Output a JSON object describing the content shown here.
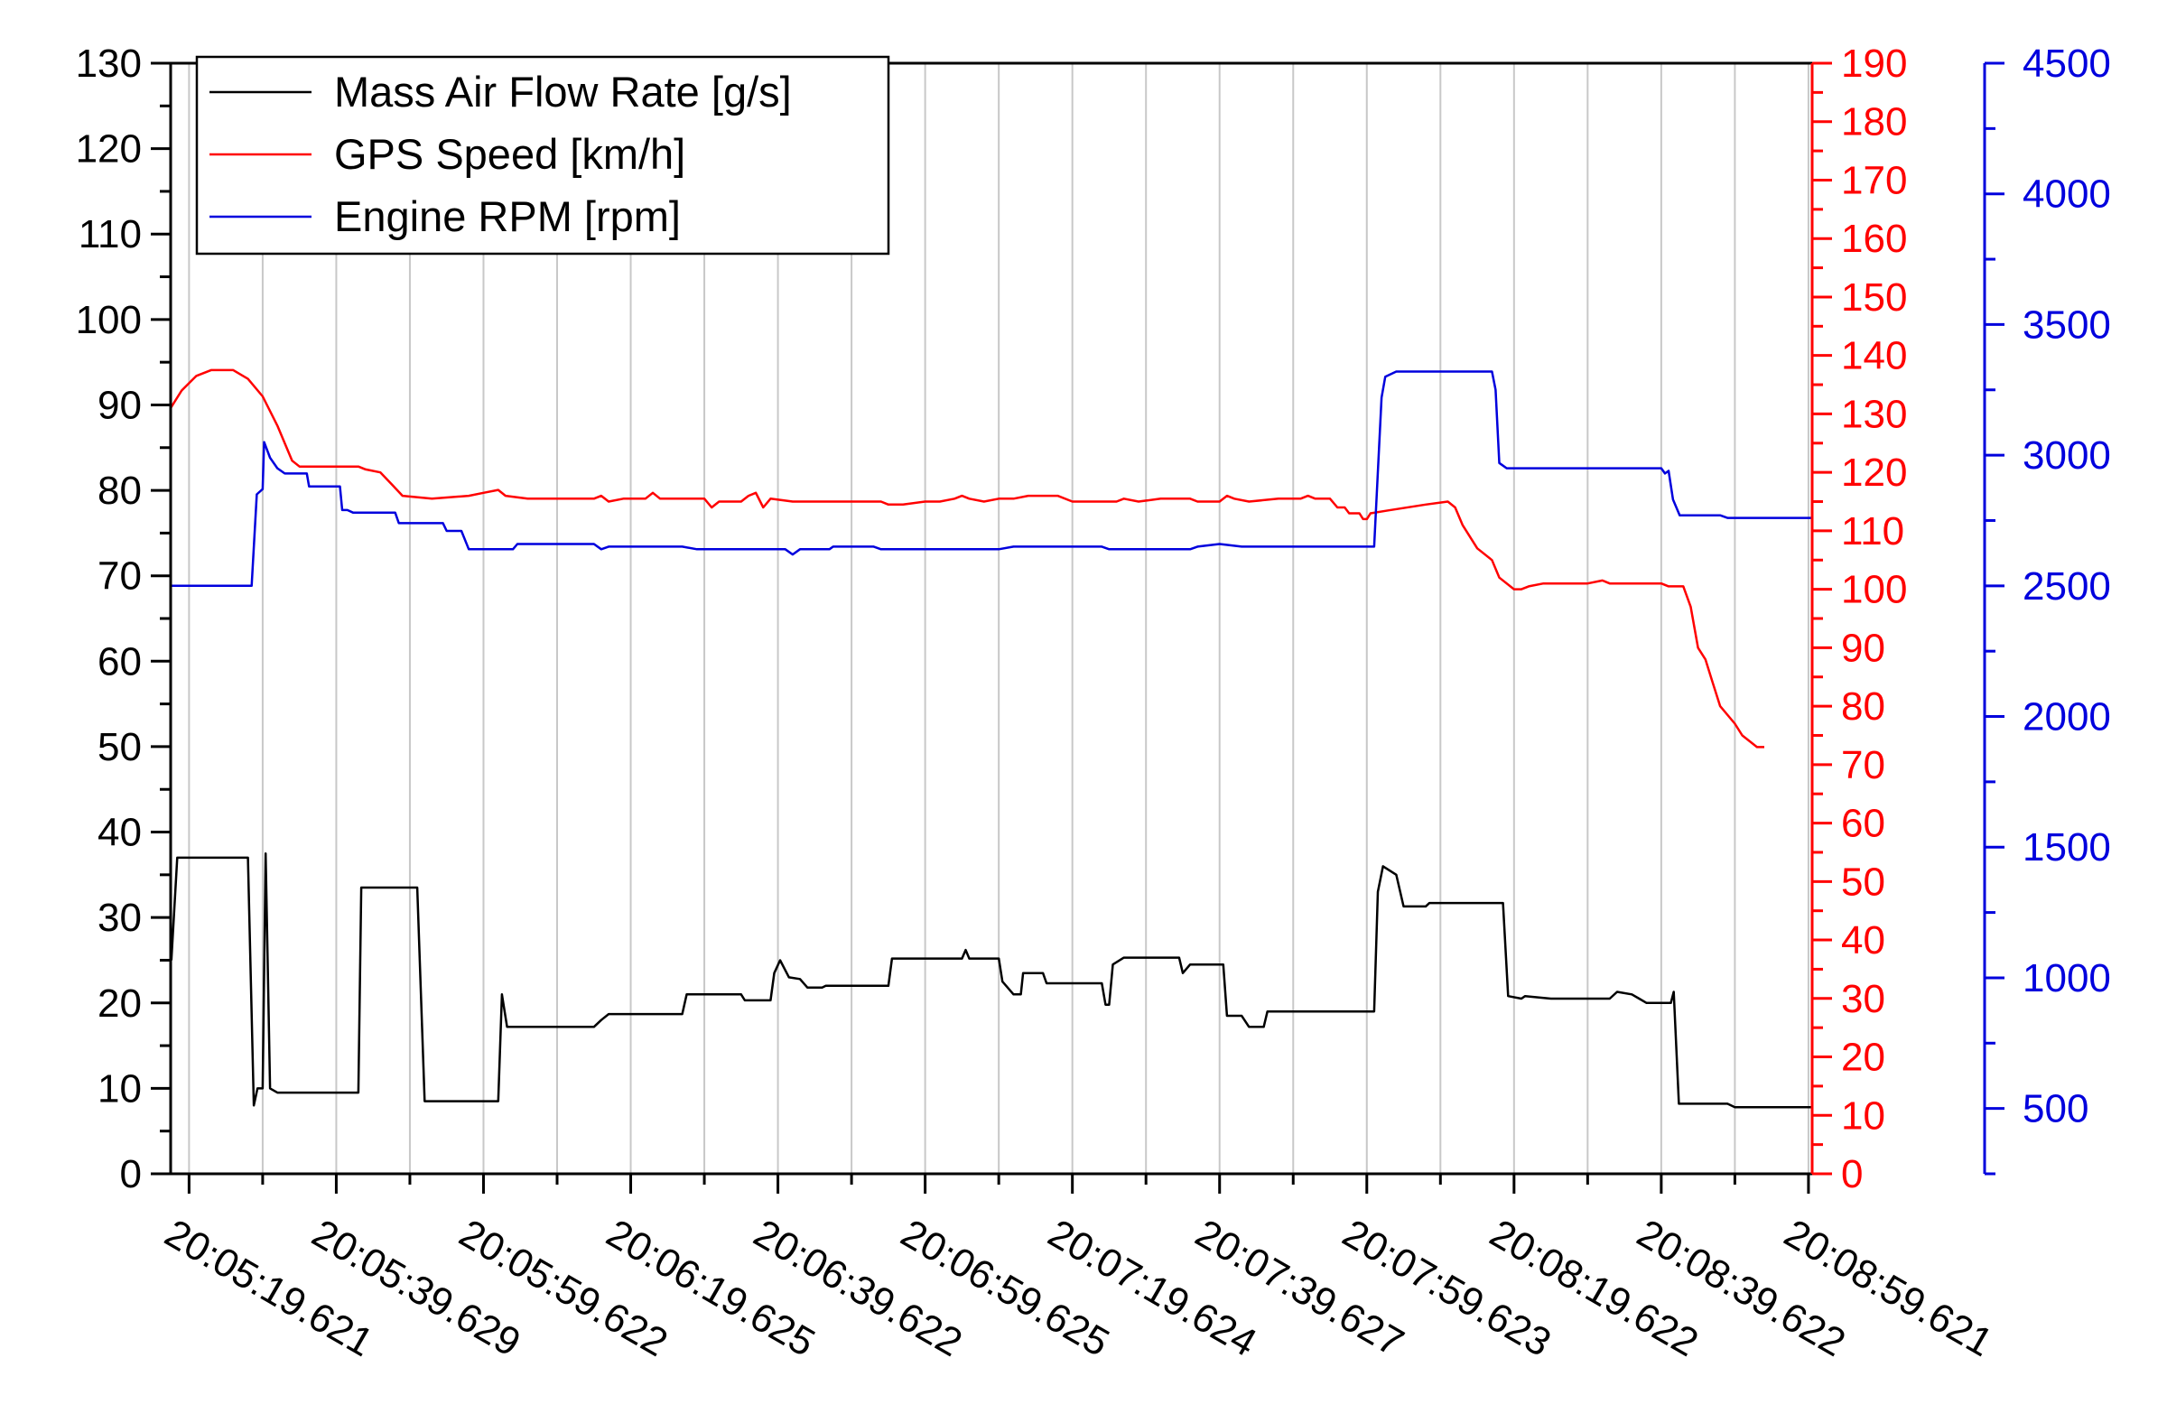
{
  "chart_data": {
    "type": "line",
    "x_ticks": [
      "20:05:19.621",
      "20:05:39.629",
      "20:05:59.622",
      "20:06:19.625",
      "20:06:39.622",
      "20:06:59.625",
      "20:07:19.624",
      "20:07:39.627",
      "20:07:59.623",
      "20:08:19.622",
      "20:08:39.622",
      "20:08:59.621"
    ],
    "x_range_seconds": [
      -2.5,
      220.5
    ],
    "grid": "vertical",
    "legend_position": "top-left",
    "axes": {
      "left": {
        "ticks": [
          0,
          10,
          20,
          30,
          40,
          50,
          60,
          70,
          80,
          90,
          100,
          110,
          120,
          130
        ],
        "range": [
          0,
          130
        ],
        "color": "#000000"
      },
      "right1": {
        "ticks": [
          0,
          10,
          20,
          30,
          40,
          50,
          60,
          70,
          80,
          90,
          100,
          110,
          120,
          130,
          140,
          150,
          160,
          170,
          180,
          190
        ],
        "range": [
          0,
          190
        ],
        "color": "#ff0000"
      },
      "right2": {
        "ticks": [
          500,
          1000,
          1500,
          2000,
          2500,
          3000,
          3500,
          4000,
          4500
        ],
        "range": [
          250,
          4500
        ],
        "color": "#0000dd"
      }
    },
    "series": [
      {
        "name": "Mass Air Flow Rate [g/s]",
        "color": "#000000",
        "axis": "left",
        "points": [
          [
            -2.4,
            25
          ],
          [
            -1.6,
            37
          ],
          [
            8,
            37
          ],
          [
            8.8,
            8
          ],
          [
            9.3,
            10
          ],
          [
            10,
            10
          ],
          [
            10.4,
            37.5
          ],
          [
            11,
            10
          ],
          [
            12,
            9.5
          ],
          [
            23,
            9.5
          ],
          [
            23.4,
            33.5
          ],
          [
            31,
            33.5
          ],
          [
            32,
            8.5
          ],
          [
            42,
            8.5
          ],
          [
            42.5,
            21
          ],
          [
            43.2,
            17.2
          ],
          [
            55,
            17.2
          ],
          [
            56,
            18
          ],
          [
            57,
            18.7
          ],
          [
            67,
            18.7
          ],
          [
            67.6,
            21
          ],
          [
            75,
            21
          ],
          [
            75.5,
            20.3
          ],
          [
            79,
            20.3
          ],
          [
            79.5,
            23.5
          ],
          [
            80.3,
            25
          ],
          [
            81.5,
            23
          ],
          [
            83,
            22.8
          ],
          [
            84,
            21.8
          ],
          [
            86,
            21.8
          ],
          [
            86.5,
            22
          ],
          [
            95,
            22
          ],
          [
            95.5,
            25.2
          ],
          [
            105,
            25.2
          ],
          [
            105.5,
            26.2
          ],
          [
            106,
            25.2
          ],
          [
            110,
            25.2
          ],
          [
            110.5,
            22.5
          ],
          [
            112,
            21
          ],
          [
            113,
            21
          ],
          [
            113.3,
            23.5
          ],
          [
            116,
            23.5
          ],
          [
            116.5,
            22.3
          ],
          [
            124,
            22.3
          ],
          [
            124.5,
            19.8
          ],
          [
            125,
            19.8
          ],
          [
            125.5,
            24.5
          ],
          [
            127,
            25.3
          ],
          [
            134.5,
            25.3
          ],
          [
            135,
            23.5
          ],
          [
            136,
            24.5
          ],
          [
            140.5,
            24.5
          ],
          [
            141,
            18.5
          ],
          [
            143,
            18.5
          ],
          [
            144,
            17.2
          ],
          [
            146,
            17.2
          ],
          [
            146.5,
            19
          ],
          [
            161,
            19
          ],
          [
            161.5,
            33
          ],
          [
            162.2,
            36
          ],
          [
            164,
            35
          ],
          [
            165,
            31.3
          ],
          [
            168,
            31.3
          ],
          [
            168.5,
            31.7
          ],
          [
            178.5,
            31.7
          ],
          [
            179.2,
            20.8
          ],
          [
            181,
            20.5
          ],
          [
            181.5,
            20.8
          ],
          [
            185,
            20.5
          ],
          [
            193,
            20.5
          ],
          [
            194,
            21.3
          ],
          [
            196,
            21
          ],
          [
            197,
            20.5
          ],
          [
            198,
            20
          ],
          [
            201.3,
            20
          ],
          [
            201.7,
            21.3
          ],
          [
            202.4,
            8.2
          ],
          [
            209,
            8.2
          ],
          [
            210,
            7.8
          ],
          [
            220.5,
            7.8
          ]
        ]
      },
      {
        "name": "GPS Speed [km/h]",
        "color": "#ff0000",
        "axis": "right1",
        "points": [
          [
            -2.5,
            131
          ],
          [
            -1,
            134
          ],
          [
            1,
            136.5
          ],
          [
            3,
            137.5
          ],
          [
            6,
            137.5
          ],
          [
            8,
            136
          ],
          [
            10,
            133
          ],
          [
            12,
            128
          ],
          [
            14,
            122
          ],
          [
            15,
            121
          ],
          [
            23,
            121
          ],
          [
            24,
            120.5
          ],
          [
            26,
            120
          ],
          [
            27.5,
            118
          ],
          [
            29,
            116
          ],
          [
            33,
            115.5
          ],
          [
            38,
            116
          ],
          [
            40,
            116.5
          ],
          [
            42,
            117
          ],
          [
            43,
            116
          ],
          [
            46,
            115.5
          ],
          [
            50,
            115.5
          ],
          [
            55,
            115.5
          ],
          [
            56,
            116
          ],
          [
            57,
            115
          ],
          [
            59,
            115.5
          ],
          [
            62,
            115.5
          ],
          [
            63,
            116.5
          ],
          [
            64,
            115.5
          ],
          [
            66,
            115.5
          ],
          [
            70,
            115.5
          ],
          [
            71,
            114
          ],
          [
            72,
            115
          ],
          [
            75,
            115
          ],
          [
            76,
            116
          ],
          [
            77,
            116.5
          ],
          [
            78,
            114
          ],
          [
            79,
            115.5
          ],
          [
            82,
            115
          ],
          [
            90,
            115
          ],
          [
            92,
            115
          ],
          [
            94,
            115
          ],
          [
            95,
            114.5
          ],
          [
            97,
            114.5
          ],
          [
            100,
            115
          ],
          [
            101,
            115
          ],
          [
            102,
            115
          ],
          [
            104,
            115.5
          ],
          [
            105,
            116
          ],
          [
            106,
            115.5
          ],
          [
            108,
            115
          ],
          [
            110,
            115.5
          ],
          [
            112,
            115.5
          ],
          [
            114,
            116
          ],
          [
            118,
            116
          ],
          [
            120,
            115
          ],
          [
            126,
            115
          ],
          [
            127,
            115.5
          ],
          [
            129,
            115
          ],
          [
            132,
            115.5
          ],
          [
            136,
            115.5
          ],
          [
            137,
            115
          ],
          [
            140,
            115
          ],
          [
            141,
            116
          ],
          [
            142,
            115.5
          ],
          [
            144,
            115
          ],
          [
            148,
            115.5
          ],
          [
            151,
            115.5
          ],
          [
            152,
            116
          ],
          [
            153,
            115.5
          ],
          [
            155,
            115.5
          ],
          [
            156,
            114
          ],
          [
            157,
            114
          ],
          [
            157.6,
            113
          ],
          [
            159,
            113
          ],
          [
            159.5,
            112
          ],
          [
            160,
            112
          ],
          [
            160.5,
            113
          ],
          [
            163,
            113.5
          ],
          [
            168,
            114.5
          ],
          [
            171,
            115
          ],
          [
            172,
            114
          ],
          [
            173,
            111
          ],
          [
            175,
            107
          ],
          [
            177,
            105
          ],
          [
            178,
            102
          ],
          [
            180,
            100
          ],
          [
            181,
            100
          ],
          [
            182,
            100.5
          ],
          [
            184,
            101
          ],
          [
            190,
            101
          ],
          [
            192,
            101.5
          ],
          [
            193,
            101
          ],
          [
            198,
            101
          ],
          [
            200,
            101
          ],
          [
            201,
            100.5
          ],
          [
            203,
            100.5
          ],
          [
            204,
            97
          ],
          [
            205,
            90
          ],
          [
            206,
            88
          ],
          [
            207,
            84
          ],
          [
            208,
            80
          ],
          [
            210,
            77
          ],
          [
            211,
            75
          ],
          [
            212,
            74
          ],
          [
            213,
            73
          ],
          [
            214,
            73
          ]
        ]
      },
      {
        "name": "Engine RPM [rpm]",
        "color": "#0000dd",
        "axis": "right2",
        "points": [
          [
            -2.5,
            2500
          ],
          [
            8.5,
            2500
          ],
          [
            9.2,
            2850
          ],
          [
            10,
            2870
          ],
          [
            10.2,
            3050
          ],
          [
            11,
            2990
          ],
          [
            12,
            2950
          ],
          [
            13,
            2930
          ],
          [
            16,
            2930
          ],
          [
            16.3,
            2880
          ],
          [
            20.5,
            2880
          ],
          [
            20.8,
            2790
          ],
          [
            21.5,
            2790
          ],
          [
            22.3,
            2780
          ],
          [
            28,
            2780
          ],
          [
            28.5,
            2740
          ],
          [
            34.5,
            2740
          ],
          [
            35,
            2710
          ],
          [
            37,
            2710
          ],
          [
            38,
            2640
          ],
          [
            44,
            2640
          ],
          [
            44.6,
            2660
          ],
          [
            55,
            2660
          ],
          [
            56,
            2640
          ],
          [
            57,
            2650
          ],
          [
            67,
            2650
          ],
          [
            69,
            2640
          ],
          [
            75,
            2640
          ],
          [
            76,
            2640
          ],
          [
            81,
            2640
          ],
          [
            82,
            2620
          ],
          [
            83,
            2640
          ],
          [
            87,
            2640
          ],
          [
            87.5,
            2650
          ],
          [
            93,
            2650
          ],
          [
            94,
            2640
          ],
          [
            110,
            2640
          ],
          [
            112,
            2650
          ],
          [
            124,
            2650
          ],
          [
            125,
            2640
          ],
          [
            136,
            2640
          ],
          [
            137,
            2650
          ],
          [
            140,
            2660
          ],
          [
            143,
            2650
          ],
          [
            150,
            2650
          ],
          [
            151,
            2650
          ],
          [
            157,
            2650
          ],
          [
            161,
            2650
          ],
          [
            162,
            3220
          ],
          [
            162.5,
            3300
          ],
          [
            164,
            3320
          ],
          [
            177,
            3320
          ],
          [
            177.5,
            3250
          ],
          [
            178,
            2970
          ],
          [
            178.5,
            2960
          ],
          [
            179,
            2950
          ],
          [
            200,
            2950
          ],
          [
            200.5,
            2930
          ],
          [
            201,
            2940
          ],
          [
            201.6,
            2830
          ],
          [
            202.5,
            2770
          ],
          [
            208,
            2770
          ],
          [
            209,
            2760
          ],
          [
            213,
            2760
          ],
          [
            220.5,
            2760
          ]
        ]
      }
    ]
  }
}
